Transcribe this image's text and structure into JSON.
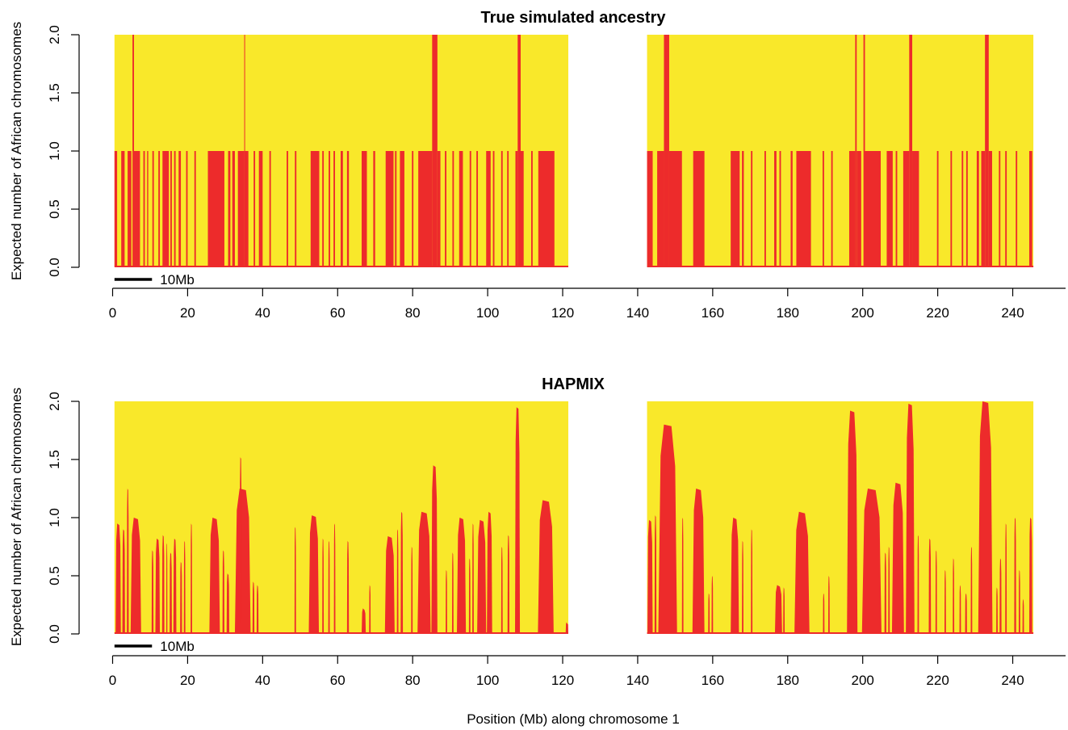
{
  "xlabel": "Position (Mb) along chromosome 1",
  "colors": {
    "african": "#ed2b2b",
    "other": "#f9e82a",
    "axis": "#000000"
  },
  "chart_data": [
    {
      "type": "area",
      "title": "True simulated ancestry",
      "ylabel": "Expected number of African chromosomes",
      "xlim": [
        0,
        245
      ],
      "ylim": [
        0,
        2
      ],
      "yticks": [
        "0.0",
        "0.5",
        "1.0",
        "1.5",
        "2.0"
      ],
      "xticks": [
        "0",
        "20",
        "40",
        "60",
        "80",
        "100",
        "120",
        "140",
        "160",
        "180",
        "200",
        "220",
        "240"
      ],
      "arms": [
        [
          0.5,
          121.5
        ],
        [
          142.5,
          245.5
        ]
      ],
      "scalebar": {
        "length_mb": 10,
        "label": "10Mb"
      },
      "segments": [
        [
          0.5,
          1.2,
          1
        ],
        [
          2.3,
          3.2,
          1
        ],
        [
          4.0,
          5.0,
          1
        ],
        [
          5.3,
          5.7,
          2
        ],
        [
          5.7,
          7.3,
          1
        ],
        [
          8.2,
          8.6,
          1
        ],
        [
          9.2,
          9.5,
          1
        ],
        [
          10.6,
          11.0,
          1
        ],
        [
          12.2,
          12.6,
          1
        ],
        [
          13.3,
          15.0,
          1
        ],
        [
          15.4,
          15.8,
          1
        ],
        [
          16.4,
          16.8,
          1
        ],
        [
          17.6,
          18.2,
          1
        ],
        [
          19.6,
          20.0,
          1
        ],
        [
          21.8,
          22.2,
          1
        ],
        [
          25.4,
          29.8,
          1
        ],
        [
          30.8,
          31.4,
          1
        ],
        [
          31.9,
          32.6,
          1
        ],
        [
          33.4,
          35.1,
          1
        ],
        [
          35.1,
          35.3,
          2
        ],
        [
          35.3,
          36.2,
          1
        ],
        [
          37.6,
          38.0,
          1
        ],
        [
          39.0,
          40.0,
          1
        ],
        [
          41.8,
          42.2,
          1
        ],
        [
          46.4,
          46.8,
          1
        ],
        [
          48.6,
          49.0,
          1
        ],
        [
          52.8,
          55.1,
          1
        ],
        [
          55.9,
          56.3,
          1
        ],
        [
          57.6,
          58.0,
          1
        ],
        [
          58.9,
          59.3,
          1
        ],
        [
          60.8,
          61.4,
          1
        ],
        [
          62.5,
          63.0,
          1
        ],
        [
          66.4,
          67.8,
          1
        ],
        [
          69.5,
          70.0,
          1
        ],
        [
          72.8,
          74.9,
          1
        ],
        [
          75.3,
          75.7,
          1
        ],
        [
          76.6,
          77.8,
          1
        ],
        [
          79.8,
          80.2,
          1
        ],
        [
          81.5,
          85.2,
          1
        ],
        [
          85.2,
          86.6,
          2
        ],
        [
          86.6,
          87.4,
          1
        ],
        [
          88.6,
          89.0,
          1
        ],
        [
          90.6,
          91.0,
          1
        ],
        [
          92.4,
          93.4,
          1
        ],
        [
          95.2,
          95.6,
          1
        ],
        [
          97.0,
          97.4,
          1
        ],
        [
          99.6,
          100.8,
          1
        ],
        [
          101.4,
          101.8,
          1
        ],
        [
          103.6,
          104.0,
          1
        ],
        [
          105.2,
          105.6,
          1
        ],
        [
          107.4,
          108.0,
          1
        ],
        [
          108.0,
          108.8,
          2
        ],
        [
          108.8,
          109.6,
          1
        ],
        [
          111.6,
          112.0,
          1
        ],
        [
          113.5,
          117.8,
          1
        ],
        [
          142.5,
          144.0,
          1
        ],
        [
          145.2,
          147.0,
          1
        ],
        [
          147.0,
          148.4,
          2
        ],
        [
          148.4,
          151.8,
          1
        ],
        [
          154.8,
          157.8,
          1
        ],
        [
          164.8,
          167.2,
          1
        ],
        [
          167.8,
          168.3,
          1
        ],
        [
          170.2,
          170.6,
          1
        ],
        [
          173.8,
          174.2,
          1
        ],
        [
          176.4,
          177.0,
          1
        ],
        [
          177.8,
          178.2,
          1
        ],
        [
          180.8,
          181.3,
          1
        ],
        [
          182.3,
          186.2,
          1
        ],
        [
          189.3,
          189.7,
          1
        ],
        [
          191.6,
          192.0,
          1
        ],
        [
          196.4,
          198.0,
          1
        ],
        [
          198.0,
          198.4,
          2
        ],
        [
          198.4,
          199.6,
          1
        ],
        [
          200.2,
          200.6,
          2
        ],
        [
          200.6,
          204.8,
          1
        ],
        [
          206.4,
          208.0,
          1
        ],
        [
          208.8,
          209.2,
          1
        ],
        [
          210.8,
          212.4,
          1
        ],
        [
          212.4,
          213.2,
          2
        ],
        [
          213.2,
          215.0,
          1
        ],
        [
          219.8,
          220.2,
          1
        ],
        [
          223.4,
          223.8,
          1
        ],
        [
          226.4,
          226.8,
          1
        ],
        [
          227.6,
          228.0,
          1
        ],
        [
          230.4,
          231.0,
          1
        ],
        [
          231.6,
          232.6,
          1
        ],
        [
          232.6,
          233.6,
          2
        ],
        [
          233.6,
          234.5,
          1
        ],
        [
          236.3,
          236.7,
          1
        ],
        [
          238.0,
          238.4,
          1
        ],
        [
          240.8,
          241.2,
          1
        ],
        [
          244.4,
          245.2,
          1
        ]
      ]
    },
    {
      "type": "area",
      "title": "HAPMIX",
      "ylabel": "Expected number of African chromosomes",
      "xlim": [
        0,
        245
      ],
      "ylim": [
        0,
        2
      ],
      "yticks": [
        "0.0",
        "0.5",
        "1.0",
        "1.5",
        "2.0"
      ],
      "xticks": [
        "0",
        "20",
        "40",
        "60",
        "80",
        "100",
        "120",
        "140",
        "160",
        "180",
        "200",
        "220",
        "240"
      ],
      "arms": [
        [
          0.5,
          121.5
        ],
        [
          142.5,
          245.5
        ]
      ],
      "scalebar": {
        "length_mb": 10,
        "label": "10Mb"
      },
      "peaks": [
        [
          0.8,
          2.2,
          0.95
        ],
        [
          2.6,
          3.3,
          0.9
        ],
        [
          3.8,
          4.3,
          1.25
        ],
        [
          4.8,
          7.6,
          1.0
        ],
        [
          10.4,
          10.9,
          0.72
        ],
        [
          11.4,
          12.6,
          0.82
        ],
        [
          13.2,
          13.8,
          0.85
        ],
        [
          14.3,
          14.6,
          0.78
        ],
        [
          15.2,
          15.8,
          0.7
        ],
        [
          16.2,
          17.0,
          0.82
        ],
        [
          18.0,
          18.5,
          0.62
        ],
        [
          19.0,
          19.4,
          0.8
        ],
        [
          20.8,
          21.2,
          0.95
        ],
        [
          25.8,
          28.6,
          1.0
        ],
        [
          29.3,
          29.8,
          0.72
        ],
        [
          30.4,
          31.1,
          0.52
        ],
        [
          32.6,
          36.8,
          1.25
        ],
        [
          33.9,
          34.4,
          1.52
        ],
        [
          37.3,
          37.8,
          0.45
        ],
        [
          38.4,
          38.9,
          0.42
        ],
        [
          48.5,
          48.9,
          0.92
        ],
        [
          52.3,
          55.0,
          1.02
        ],
        [
          55.9,
          56.3,
          0.82
        ],
        [
          57.5,
          57.9,
          0.8
        ],
        [
          59.0,
          59.4,
          0.95
        ],
        [
          62.5,
          63.0,
          0.8
        ],
        [
          66.4,
          67.5,
          0.22
        ],
        [
          68.4,
          68.8,
          0.42
        ],
        [
          72.6,
          75.2,
          0.84
        ],
        [
          75.8,
          76.2,
          0.9
        ],
        [
          76.8,
          77.4,
          1.05
        ],
        [
          79.6,
          80.0,
          0.75
        ],
        [
          81.3,
          84.8,
          1.05
        ],
        [
          85.0,
          86.6,
          1.45
        ],
        [
          88.8,
          89.2,
          0.55
        ],
        [
          90.5,
          90.9,
          0.7
        ],
        [
          91.8,
          94.2,
          1.0
        ],
        [
          95.0,
          95.4,
          0.65
        ],
        [
          95.9,
          96.3,
          0.95
        ],
        [
          97.2,
          99.6,
          0.98
        ],
        [
          99.8,
          101.2,
          1.05
        ],
        [
          103.6,
          104.0,
          0.75
        ],
        [
          105.3,
          105.8,
          0.85
        ],
        [
          107.3,
          108.6,
          1.95
        ],
        [
          113.4,
          117.6,
          1.15
        ],
        [
          120.8,
          121.5,
          0.1
        ],
        [
          142.6,
          144.0,
          0.98
        ],
        [
          144.5,
          145.0,
          1.02
        ],
        [
          145.5,
          150.5,
          1.8
        ],
        [
          151.8,
          152.2,
          1.0
        ],
        [
          154.6,
          157.8,
          1.25
        ],
        [
          158.8,
          159.2,
          0.35
        ],
        [
          159.7,
          160.1,
          0.5
        ],
        [
          164.8,
          167.0,
          1.0
        ],
        [
          167.8,
          168.2,
          0.8
        ],
        [
          170.2,
          170.6,
          0.9
        ],
        [
          176.6,
          178.5,
          0.42
        ],
        [
          178.8,
          179.2,
          0.4
        ],
        [
          181.8,
          185.8,
          1.05
        ],
        [
          189.4,
          189.8,
          0.35
        ],
        [
          190.8,
          191.2,
          0.5
        ],
        [
          195.8,
          198.6,
          1.92
        ],
        [
          199.8,
          205.0,
          1.25
        ],
        [
          205.8,
          206.3,
          0.7
        ],
        [
          206.8,
          207.2,
          0.75
        ],
        [
          207.8,
          211.0,
          1.3
        ],
        [
          211.5,
          213.8,
          1.98
        ],
        [
          214.6,
          215.0,
          0.85
        ],
        [
          217.6,
          218.2,
          0.82
        ],
        [
          219.4,
          219.8,
          0.72
        ],
        [
          221.8,
          222.2,
          0.55
        ],
        [
          224.0,
          224.4,
          0.65
        ],
        [
          225.8,
          226.2,
          0.42
        ],
        [
          227.3,
          227.8,
          0.35
        ],
        [
          228.8,
          229.2,
          0.75
        ],
        [
          230.8,
          234.6,
          2.0
        ],
        [
          235.6,
          236.0,
          0.4
        ],
        [
          236.5,
          237.0,
          0.65
        ],
        [
          238.0,
          238.4,
          0.95
        ],
        [
          240.4,
          240.9,
          1.0
        ],
        [
          241.6,
          242.0,
          0.55
        ],
        [
          242.6,
          243.0,
          0.3
        ],
        [
          244.4,
          245.2,
          1.0
        ]
      ]
    }
  ]
}
